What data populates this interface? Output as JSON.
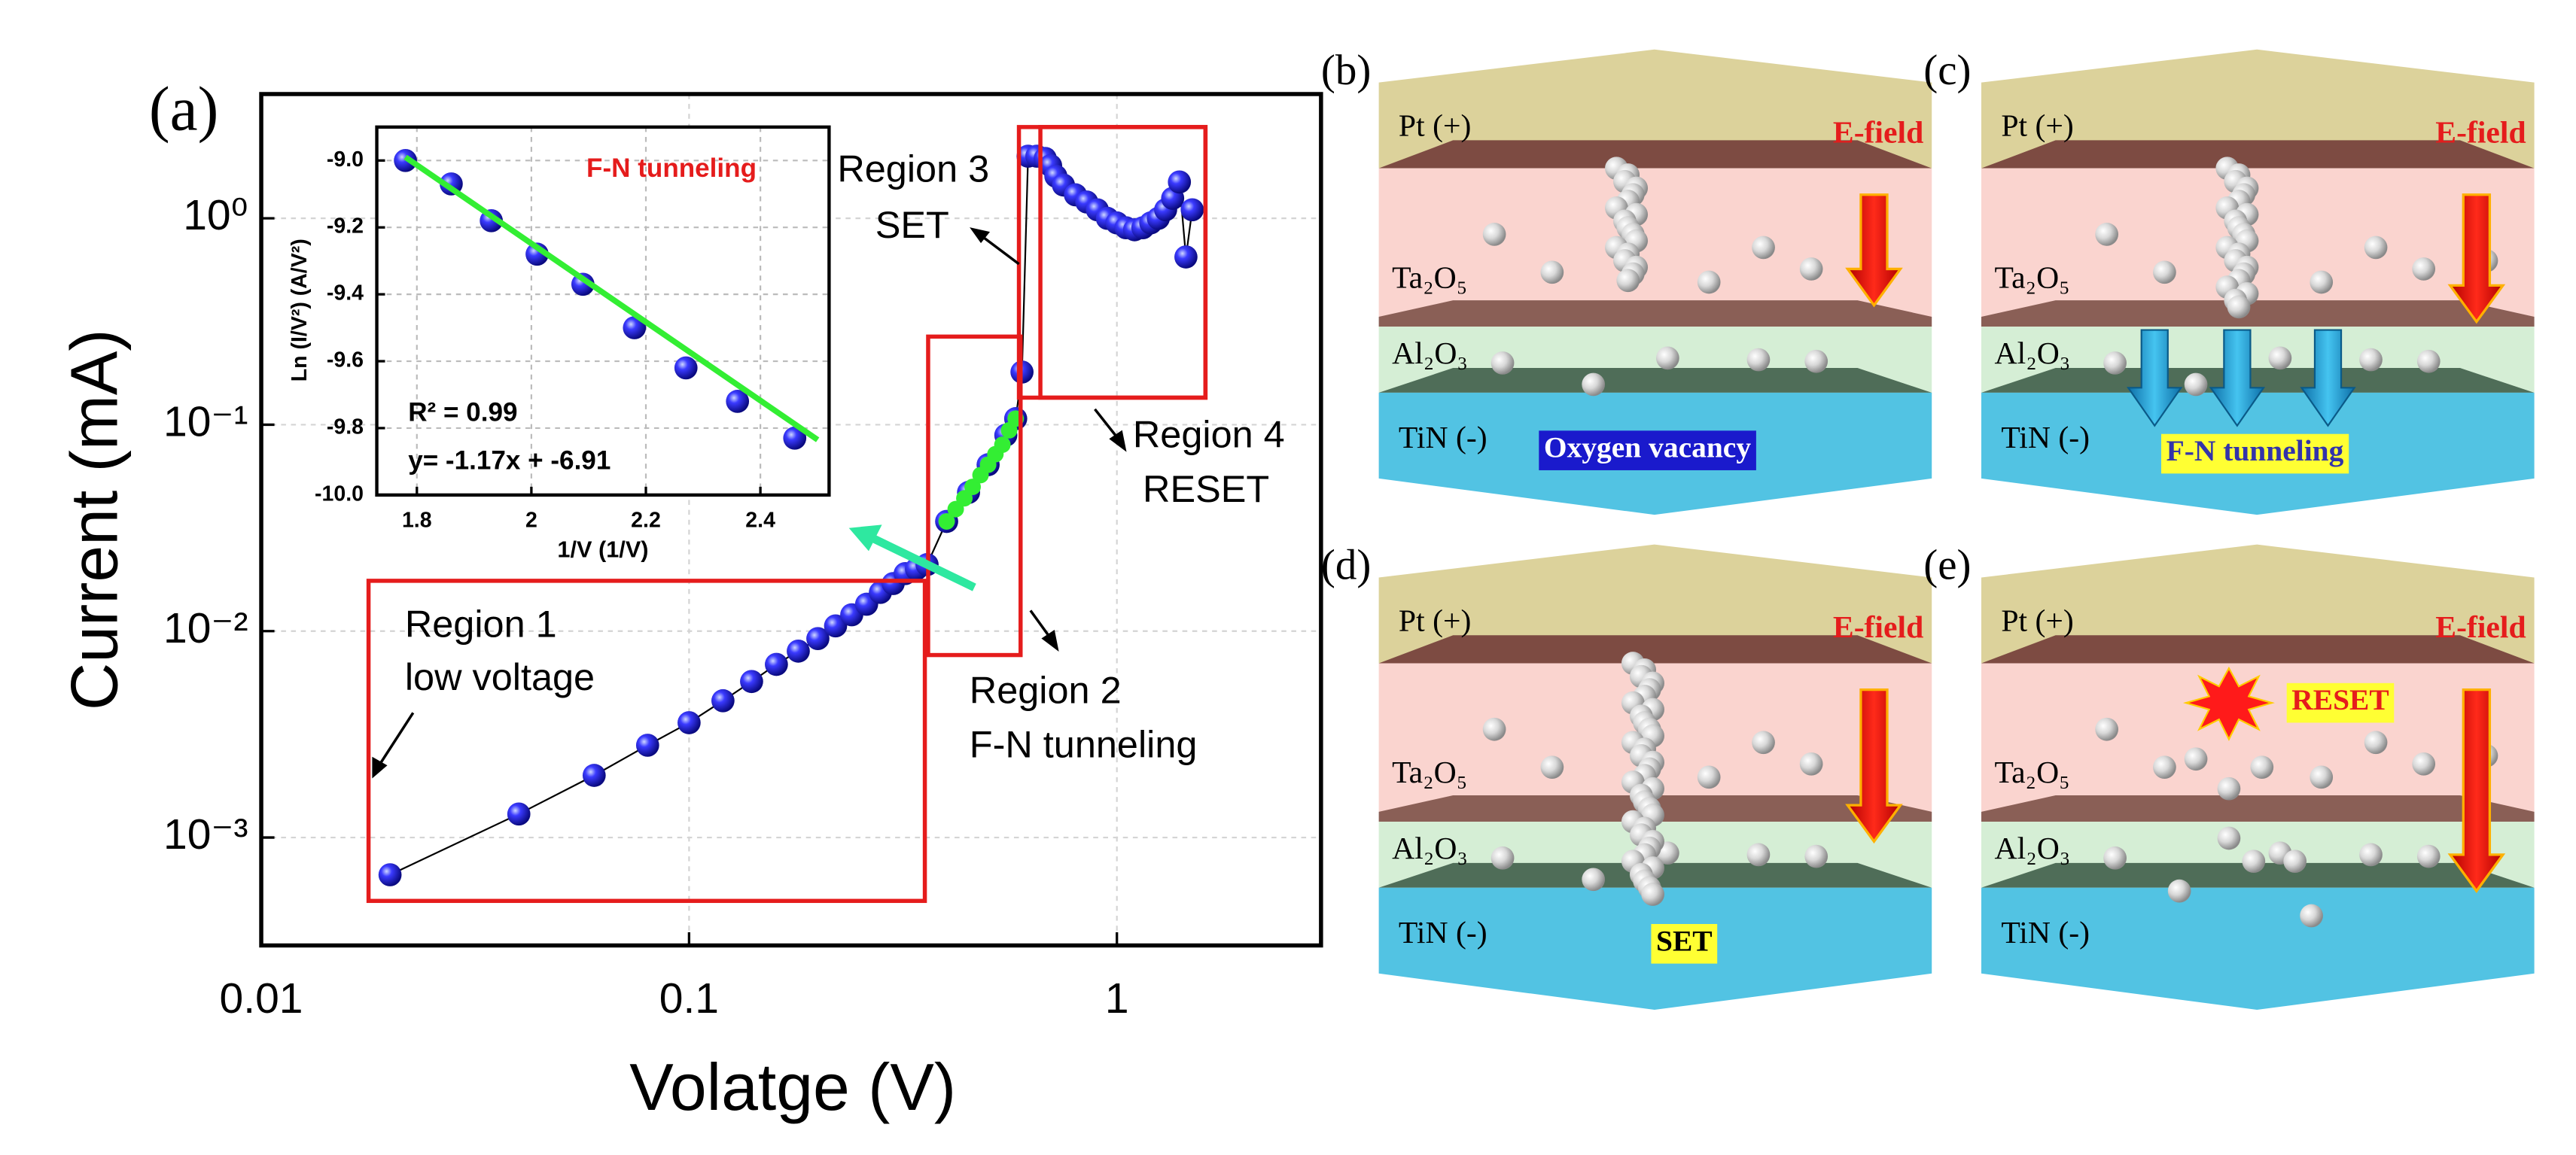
{
  "chart_data": [
    {
      "type": "scatter",
      "label": "(a)",
      "xlabel": "Volatge (V)",
      "ylabel": "Current (mA)",
      "xscale": "log",
      "yscale": "log",
      "xlim": [
        0.01,
        3
      ],
      "ylim": [
        0.0003,
        4
      ],
      "xticks": [
        0.01,
        0.1,
        1
      ],
      "yticks": [
        {
          "value": 0.001,
          "label": "10⁻³"
        },
        {
          "value": 0.01,
          "label": "10⁻²"
        },
        {
          "value": 0.1,
          "label": "10⁻¹"
        },
        {
          "value": 1,
          "label": "10⁰"
        }
      ],
      "grid": true,
      "series": [
        {
          "color": "#1f1fe0",
          "line": true,
          "line_color": "#000000",
          "x": [
            0.02,
            0.04,
            0.06,
            0.08,
            0.1,
            0.12,
            0.14,
            0.16,
            0.18,
            0.2,
            0.22,
            0.24,
            0.26,
            0.28,
            0.3,
            0.32,
            0.34,
            0.36,
            0.4,
            0.45,
            0.5,
            0.55,
            0.58,
            0.6,
            0.62,
            0.65,
            0.68,
            0.7,
            0.72,
            0.75,
            0.8,
            0.85,
            0.9,
            0.95,
            1.0,
            1.05,
            1.1,
            1.15,
            1.2,
            1.25,
            1.3,
            1.35,
            1.4,
            1.45,
            1.5
          ],
          "values": [
            0.00066,
            0.0013,
            0.002,
            0.0028,
            0.0036,
            0.0046,
            0.0057,
            0.0069,
            0.008,
            0.0092,
            0.0106,
            0.012,
            0.0135,
            0.0154,
            0.017,
            0.019,
            0.02,
            0.021,
            0.034,
            0.047,
            0.064,
            0.089,
            0.107,
            0.18,
            2.0,
            2.0,
            1.95,
            1.8,
            1.6,
            1.45,
            1.3,
            1.2,
            1.1,
            1.0,
            0.95,
            0.9,
            0.88,
            0.9,
            0.95,
            1.0,
            1.1,
            1.25,
            1.5,
            0.65,
            1.1
          ]
        },
        {
          "color": "#33ee33",
          "x": [
            0.4,
            0.42,
            0.44,
            0.46,
            0.48,
            0.5,
            0.52,
            0.54,
            0.56,
            0.58
          ],
          "values": [
            0.034,
            0.039,
            0.044,
            0.05,
            0.057,
            0.064,
            0.072,
            0.08,
            0.094,
            0.107
          ]
        }
      ],
      "annotations": [
        "Region 1",
        "low voltage",
        "Region 2",
        "F-N tunneling",
        "Region 3",
        "SET",
        "Region 4",
        "RESET"
      ]
    },
    {
      "type": "scatter",
      "xlabel": "1/V (1/V)",
      "ylabel": "Ln (I/V²) (A/V²)",
      "xlim": [
        1.73,
        2.52
      ],
      "ylim": [
        -10.0,
        -8.9
      ],
      "xticks": [
        1.8,
        2,
        2.2,
        2.4
      ],
      "yticks": [
        {
          "value": -10,
          "label": "-10.0"
        },
        {
          "value": -9.8,
          "label": "-9.8"
        },
        {
          "value": -9.6,
          "label": "-9.6"
        },
        {
          "value": -9.4,
          "label": "-9.4"
        },
        {
          "value": -9.2,
          "label": "-9.2"
        },
        {
          "value": -9,
          "label": "-9.0"
        }
      ],
      "grid": true,
      "series": [
        {
          "color": "#1f1fe0",
          "x": [
            1.78,
            1.86,
            1.93,
            2.01,
            2.09,
            2.18,
            2.27,
            2.36,
            2.46
          ],
          "values": [
            -9.0,
            -9.07,
            -9.18,
            -9.28,
            -9.37,
            -9.5,
            -9.62,
            -9.72,
            -9.83
          ]
        },
        {
          "color": "#33ee33",
          "mode": "line",
          "x": [
            1.78,
            2.5
          ],
          "values": [
            -8.99,
            -9.835
          ]
        }
      ],
      "annotations": [
        "F-N tunneling",
        "R² = 0.99",
        "y= -1.17x + -6.91"
      ]
    }
  ],
  "panels": [
    {
      "label": "(b)",
      "layers": [
        "Pt (+)",
        "Ta₂O₅",
        "Al₂O₃",
        "TiN (-)"
      ],
      "field": "E-field",
      "note": "Oxygen vacancy"
    },
    {
      "label": "(c)",
      "layers": [
        "Pt (+)",
        "Ta₂O₅",
        "Al₂O₃",
        "TiN (-)"
      ],
      "field": "E-field",
      "note": "F-N tunneling"
    },
    {
      "label": "(d)",
      "layers": [
        "Pt (+)",
        "Ta₂O₅",
        "Al₂O₃",
        "TiN (-)"
      ],
      "field": "E-field",
      "note": "SET"
    },
    {
      "label": "(e)",
      "layers": [
        "Pt (+)",
        "Ta₂O₅",
        "Al₂O₃",
        "TiN (-)"
      ],
      "field": "E-field",
      "note": "RESET"
    }
  ]
}
